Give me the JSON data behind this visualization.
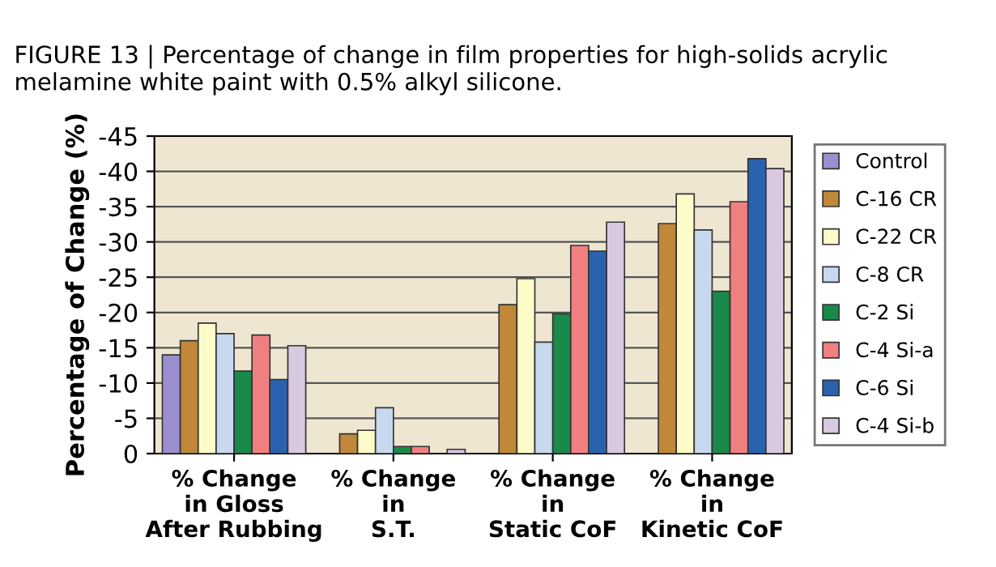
{
  "chart_data": {
    "type": "bar",
    "title": "FIGURE 13 | Percentage of change in film properties for high-solids acrylic melamine white paint with 0.5% alkyl silicone.",
    "ylabel": "Percentage of Change (%)",
    "categories": [
      "% Change\nin Gloss\nAfter Rubbing",
      "% Change\nin\nS.T.",
      "% Change\nin\nStatic CoF",
      "% Change\nin\nKinetic CoF"
    ],
    "series": [
      {
        "name": "Control",
        "color": "#9b8fd0",
        "values": [
          -14,
          null,
          null,
          null
        ]
      },
      {
        "name": "C-16 CR",
        "color": "#c08838",
        "values": [
          -16,
          -2.8,
          -21.1,
          -32.6
        ]
      },
      {
        "name": "C-22 CR",
        "color": "#fdfbc8",
        "values": [
          -18.5,
          -3.3,
          -24.8,
          -36.8
        ]
      },
      {
        "name": "C-8 CR",
        "color": "#c8d8ee",
        "values": [
          -17,
          -6.5,
          -15.8,
          -31.7
        ]
      },
      {
        "name": "C-2 Si",
        "color": "#1a8a4a",
        "values": [
          -11.7,
          -1,
          -19.8,
          -23
        ]
      },
      {
        "name": "C-4 Si-a",
        "color": "#f08080",
        "values": [
          -16.8,
          -1,
          -29.5,
          -35.7
        ]
      },
      {
        "name": "C-6 Si",
        "color": "#2a62b0",
        "values": [
          -10.5,
          null,
          -28.7,
          -41.8
        ]
      },
      {
        "name": "C-4 Si-b",
        "color": "#d8c8e0",
        "values": [
          -15.3,
          -0.6,
          -32.8,
          -40.4
        ]
      }
    ],
    "ylim": [
      0,
      -45
    ],
    "yticks": [
      0,
      -5,
      -10,
      -15,
      -20,
      -25,
      -30,
      -35,
      -40,
      -45
    ],
    "grid": "y",
    "legend": "right"
  }
}
